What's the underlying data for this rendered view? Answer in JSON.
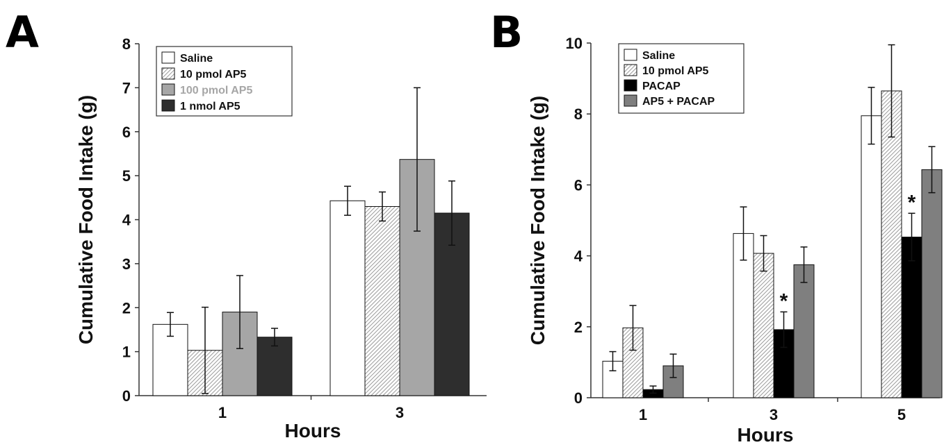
{
  "panels": [
    {
      "letter": "A"
    },
    {
      "letter": "B"
    }
  ],
  "chart_data": [
    {
      "type": "bar",
      "panel": "A",
      "categories": [
        "1",
        "3"
      ],
      "xlabel": "Hours",
      "ylabel": "Cumulative Food Intake (g)",
      "ylim": [
        0,
        8
      ],
      "yticks": [
        0,
        1,
        2,
        3,
        4,
        5,
        6,
        7,
        8
      ],
      "legend_position": "top-left",
      "series": [
        {
          "name": "Saline",
          "values": [
            1.62,
            4.43
          ],
          "errors": [
            0.27,
            0.33
          ],
          "fill": "#ffffff",
          "pattern": false
        },
        {
          "name": "10 pmol AP5",
          "values": [
            1.03,
            4.3
          ],
          "errors": [
            0.98,
            0.33
          ],
          "fill": "#dcdcdc",
          "pattern": true
        },
        {
          "name": "100 pmol AP5",
          "values": [
            1.9,
            5.37
          ],
          "errors": [
            0.83,
            1.63
          ],
          "fill": "#a6a6a6",
          "pattern": false
        },
        {
          "name": "1 nmol AP5",
          "values": [
            1.33,
            4.15
          ],
          "errors": [
            0.2,
            0.73
          ],
          "fill": "#2e2e2e",
          "pattern": false
        }
      ],
      "legend_text_colors": [
        "#111111",
        "#111111",
        "#a6a6a6",
        "#111111"
      ],
      "annotations": []
    },
    {
      "type": "bar",
      "panel": "B",
      "categories": [
        "1",
        "3",
        "5"
      ],
      "xlabel": "Hours",
      "ylabel": "Cumulative Food Intake (g)",
      "ylim": [
        0,
        10
      ],
      "yticks": [
        0,
        2,
        4,
        6,
        8,
        10
      ],
      "legend_position": "top-left",
      "series": [
        {
          "name": "Saline",
          "values": [
            1.03,
            4.63,
            7.95
          ],
          "errors": [
            0.27,
            0.75,
            0.8
          ],
          "fill": "#ffffff",
          "pattern": false
        },
        {
          "name": "10 pmol AP5",
          "values": [
            1.97,
            4.07,
            8.65
          ],
          "errors": [
            0.63,
            0.5,
            1.3
          ],
          "fill": "#dcdcdc",
          "pattern": true
        },
        {
          "name": "PACAP",
          "values": [
            0.23,
            1.92,
            4.53
          ],
          "errors": [
            0.1,
            0.5,
            0.67
          ],
          "fill": "#000000",
          "pattern": false
        },
        {
          "name": "AP5 + PACAP",
          "values": [
            0.9,
            3.75,
            6.43
          ],
          "errors": [
            0.33,
            0.5,
            0.65
          ],
          "fill": "#7f7f7f",
          "pattern": false
        }
      ],
      "legend_text_colors": [
        "#111111",
        "#111111",
        "#111111",
        "#111111"
      ],
      "annotations": [
        {
          "text": "*",
          "category": "3",
          "series": "PACAP"
        },
        {
          "text": "*",
          "category": "5",
          "series": "PACAP"
        }
      ]
    }
  ]
}
